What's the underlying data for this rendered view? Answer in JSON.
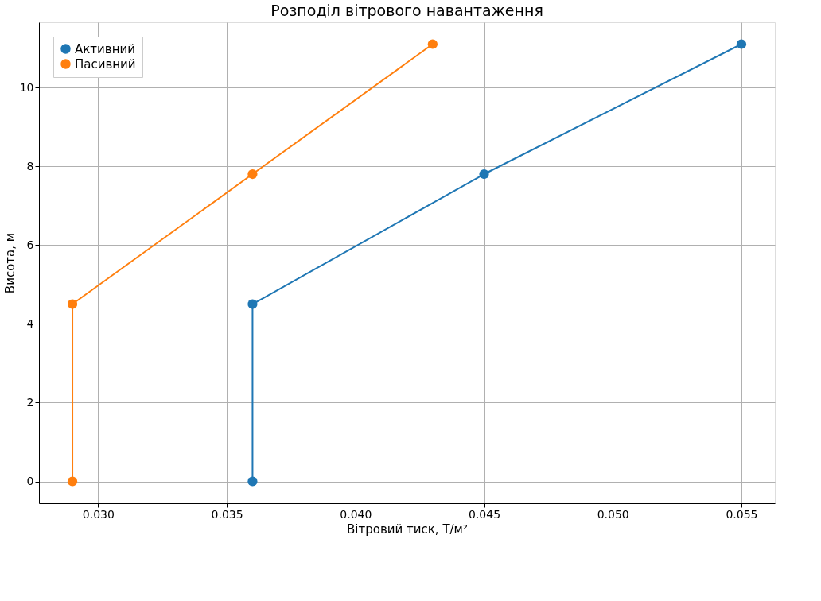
{
  "chart_data": {
    "type": "line",
    "title": "Розподіл вітрового навантаження",
    "xlabel": "Вітровий тиск, Т/м²",
    "ylabel": "Висота, м",
    "series": [
      {
        "name": "Активний",
        "color": "#1f77b4",
        "x": [
          0.036,
          0.036,
          0.045,
          0.055
        ],
        "values": [
          0,
          4.5,
          7.8,
          11.1
        ]
      },
      {
        "name": "Пасивний",
        "color": "#ff7f0e",
        "x": [
          0.029,
          0.029,
          0.036,
          0.043
        ],
        "values": [
          0,
          4.5,
          7.8,
          11.1
        ]
      }
    ],
    "xlim": [
      0.0277,
      0.0563
    ],
    "ylim": [
      -0.555,
      11.655
    ],
    "xticks": [
      {
        "value": 0.03,
        "label": "0.030"
      },
      {
        "value": 0.035,
        "label": "0.035"
      },
      {
        "value": 0.04,
        "label": "0.040"
      },
      {
        "value": 0.045,
        "label": "0.045"
      },
      {
        "value": 0.05,
        "label": "0.050"
      },
      {
        "value": 0.055,
        "label": "0.055"
      }
    ],
    "yticks": [
      0,
      2,
      4,
      6,
      8,
      10
    ],
    "grid": true,
    "legend": "top left",
    "marker": "circle",
    "line_style": "solid"
  }
}
